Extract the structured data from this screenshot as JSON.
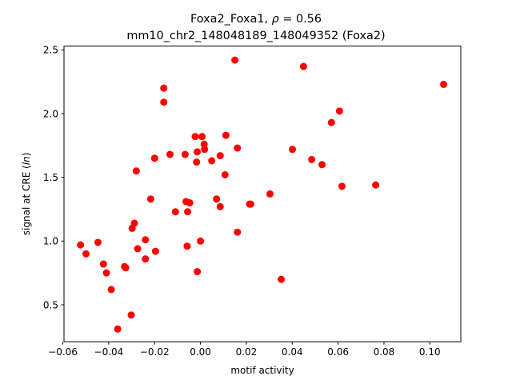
{
  "chart_data": {
    "type": "scatter",
    "title_line1_prefix": "Foxa2_Foxa1, ",
    "title_rho_symbol": "ρ",
    "title_rho_value": " = 0.56",
    "title_line2": "mm10_chr2_148048189_148049352 (Foxa2)",
    "xlabel": "motif activity",
    "ylabel_prefix": "signal at CRE (",
    "ylabel_italic": "ln",
    "ylabel_suffix": ")",
    "xlim": [
      -0.0595,
      0.1135
    ],
    "ylim": [
      0.21,
      2.53
    ],
    "xticks": [
      -0.06,
      -0.04,
      -0.02,
      0.0,
      0.02,
      0.04,
      0.06,
      0.08,
      0.1
    ],
    "xtick_labels": [
      "−0.06",
      "−0.04",
      "−0.02",
      "0.00",
      "0.02",
      "0.04",
      "0.06",
      "0.08",
      "0.10"
    ],
    "yticks": [
      0.5,
      1.0,
      1.5,
      2.0,
      2.5
    ],
    "ytick_labels": [
      "0.5",
      "1.0",
      "1.5",
      "2.0",
      "2.5"
    ],
    "marker_color": "#ff0000",
    "points": [
      {
        "x": -0.0523,
        "y": 0.97
      },
      {
        "x": -0.0499,
        "y": 0.9
      },
      {
        "x": -0.0447,
        "y": 0.99
      },
      {
        "x": -0.0423,
        "y": 0.82
      },
      {
        "x": -0.041,
        "y": 0.75
      },
      {
        "x": -0.0389,
        "y": 0.62
      },
      {
        "x": -0.0361,
        "y": 0.31
      },
      {
        "x": -0.0331,
        "y": 0.8
      },
      {
        "x": -0.0326,
        "y": 0.79
      },
      {
        "x": -0.0302,
        "y": 0.42
      },
      {
        "x": -0.0298,
        "y": 1.1
      },
      {
        "x": -0.0288,
        "y": 1.14
      },
      {
        "x": -0.028,
        "y": 1.55
      },
      {
        "x": -0.0274,
        "y": 0.94
      },
      {
        "x": -0.024,
        "y": 1.01
      },
      {
        "x": -0.024,
        "y": 0.86
      },
      {
        "x": -0.0217,
        "y": 1.33
      },
      {
        "x": -0.02,
        "y": 1.65
      },
      {
        "x": -0.0196,
        "y": 0.92
      },
      {
        "x": -0.016,
        "y": 2.2
      },
      {
        "x": -0.016,
        "y": 2.09
      },
      {
        "x": -0.0133,
        "y": 1.68
      },
      {
        "x": -0.0109,
        "y": 1.23
      },
      {
        "x": -0.0067,
        "y": 1.68
      },
      {
        "x": -0.0063,
        "y": 1.31
      },
      {
        "x": -0.0058,
        "y": 0.96
      },
      {
        "x": -0.0056,
        "y": 1.23
      },
      {
        "x": -0.0047,
        "y": 1.3
      },
      {
        "x": -0.0023,
        "y": 1.82
      },
      {
        "x": -0.0017,
        "y": 1.62
      },
      {
        "x": -0.0014,
        "y": 1.7
      },
      {
        "x": -0.0014,
        "y": 0.76
      },
      {
        "x": 0.0,
        "y": 1.0
      },
      {
        "x": 0.0007,
        "y": 1.82
      },
      {
        "x": 0.0016,
        "y": 1.76
      },
      {
        "x": 0.0018,
        "y": 1.72
      },
      {
        "x": 0.0049,
        "y": 1.63
      },
      {
        "x": 0.007,
        "y": 1.33
      },
      {
        "x": 0.0086,
        "y": 1.27
      },
      {
        "x": 0.0086,
        "y": 1.67
      },
      {
        "x": 0.0107,
        "y": 1.52
      },
      {
        "x": 0.0111,
        "y": 1.83
      },
      {
        "x": 0.015,
        "y": 2.42
      },
      {
        "x": 0.0161,
        "y": 1.73
      },
      {
        "x": 0.0161,
        "y": 1.07
      },
      {
        "x": 0.0214,
        "y": 1.29
      },
      {
        "x": 0.0219,
        "y": 1.29
      },
      {
        "x": 0.0303,
        "y": 1.37
      },
      {
        "x": 0.0352,
        "y": 0.7
      },
      {
        "x": 0.0401,
        "y": 1.72
      },
      {
        "x": 0.0449,
        "y": 2.37
      },
      {
        "x": 0.0485,
        "y": 1.64
      },
      {
        "x": 0.053,
        "y": 1.6
      },
      {
        "x": 0.0571,
        "y": 1.93
      },
      {
        "x": 0.0606,
        "y": 2.02
      },
      {
        "x": 0.0617,
        "y": 1.43
      },
      {
        "x": 0.0764,
        "y": 1.44
      },
      {
        "x": 0.106,
        "y": 2.23
      }
    ]
  }
}
